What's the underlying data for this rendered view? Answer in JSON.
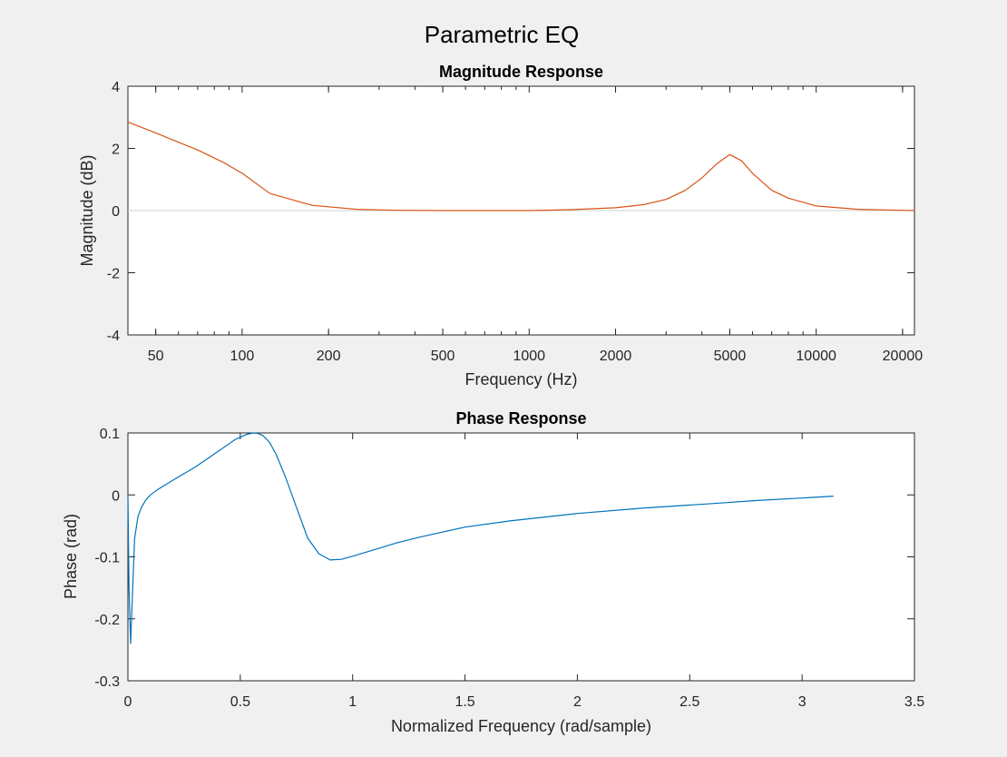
{
  "figure": {
    "title": "Parametric EQ",
    "background": "#f0f0f0"
  },
  "chart_data": [
    {
      "type": "line",
      "title": "Magnitude Response",
      "xlabel": "Frequency (Hz)",
      "ylabel": "Magnitude (dB)",
      "xscale": "log",
      "xlim": [
        40,
        22000
      ],
      "ylim": [
        -4,
        4
      ],
      "xticks": [
        50,
        100,
        200,
        500,
        1000,
        2000,
        5000,
        10000,
        20000
      ],
      "yticks": [
        -4,
        -2,
        0,
        2,
        4
      ],
      "grid": false,
      "reference_line": {
        "y": 0,
        "color": "#d0d0d0"
      },
      "series": [
        {
          "color": "#d95319",
          "x": [
            40,
            50,
            60,
            70,
            86,
            100,
            125,
            175,
            250,
            350,
            500,
            700,
            1000,
            1400,
            2000,
            2500,
            3000,
            3500,
            4000,
            4500,
            5000,
            5500,
            6000,
            7000,
            8000,
            10000,
            14000,
            20000,
            22000
          ],
          "y": [
            2.85,
            2.5,
            2.2,
            1.95,
            1.55,
            1.2,
            0.55,
            0.17,
            0.04,
            0.01,
            0.0,
            0.0,
            0.0,
            0.03,
            0.09,
            0.19,
            0.36,
            0.65,
            1.05,
            1.5,
            1.8,
            1.6,
            1.2,
            0.65,
            0.4,
            0.15,
            0.04,
            0.01,
            0.0
          ]
        }
      ]
    },
    {
      "type": "line",
      "title": "Phase Response",
      "xlabel": "Normalized Frequency (rad/sample)",
      "ylabel": "Phase (rad)",
      "xscale": "linear",
      "xlim": [
        0,
        3.5
      ],
      "ylim": [
        -0.3,
        0.1
      ],
      "xticks": [
        0,
        0.5,
        1,
        1.5,
        2,
        2.5,
        3,
        3.5
      ],
      "yticks": [
        -0.3,
        -0.2,
        -0.1,
        0,
        0.1
      ],
      "grid": false,
      "series": [
        {
          "color": "#0072bd",
          "x": [
            0.0,
            0.005,
            0.012,
            0.02,
            0.03,
            0.045,
            0.06,
            0.08,
            0.1,
            0.13,
            0.17,
            0.22,
            0.3,
            0.4,
            0.48,
            0.53,
            0.56,
            0.58,
            0.6,
            0.63,
            0.66,
            0.7,
            0.75,
            0.8,
            0.85,
            0.9,
            0.95,
            1.0,
            1.1,
            1.2,
            1.3,
            1.5,
            1.7,
            2.0,
            2.3,
            2.6,
            2.8,
            3.0,
            3.14
          ],
          "y": [
            0.0,
            -0.15,
            -0.24,
            -0.16,
            -0.07,
            -0.035,
            -0.02,
            -0.008,
            0.0,
            0.008,
            0.017,
            0.028,
            0.045,
            0.07,
            0.09,
            0.098,
            0.1,
            0.099,
            0.096,
            0.085,
            0.065,
            0.03,
            -0.02,
            -0.07,
            -0.095,
            -0.105,
            -0.104,
            -0.099,
            -0.088,
            -0.077,
            -0.068,
            -0.052,
            -0.042,
            -0.03,
            -0.021,
            -0.014,
            -0.009,
            -0.005,
            -0.002
          ]
        }
      ]
    }
  ]
}
